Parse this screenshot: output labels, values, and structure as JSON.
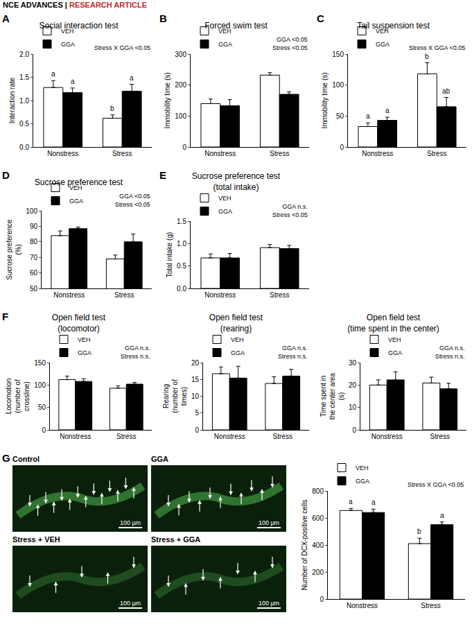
{
  "header": [
    "NCE ADVANCES |",
    "RESEARCH ARTICLE"
  ],
  "chart_data": [
    {
      "letter": "A",
      "type": "bar",
      "title": "Social interaction test",
      "y_label": "Interaction rate",
      "categories": [
        "Nonstress",
        "Stress"
      ],
      "series": [
        {
          "name": "VEH",
          "color": "#ffffff",
          "values": [
            1.28,
            0.62
          ],
          "errors": [
            0.15,
            0.07
          ],
          "letters": [
            "a",
            "b"
          ]
        },
        {
          "name": "GGA",
          "color": "#000000",
          "values": [
            1.17,
            1.2
          ],
          "errors": [
            0.1,
            0.15
          ],
          "letters": [
            "a",
            "a"
          ]
        }
      ],
      "ylim": [
        0,
        2
      ],
      "yticks": [
        {
          "value": 0,
          "label": "0.0"
        },
        0.5,
        {
          "value": 1,
          "label": "1.0"
        },
        1.5,
        {
          "value": 2,
          "label": "2.0"
        }
      ],
      "stats": [
        "Stress X GGA <0.05"
      ],
      "legend": "top left",
      "grid": false
    },
    {
      "letter": "B",
      "type": "bar",
      "title": "Forced swim test",
      "y_label": "Immobility time (s)",
      "categories": [
        "Nonstress",
        "Stress"
      ],
      "series": [
        {
          "name": "VEH",
          "color": "#ffffff",
          "values": [
            140,
            232
          ],
          "errors": [
            15,
            8
          ]
        },
        {
          "name": "GGA",
          "color": "#000000",
          "values": [
            133,
            170
          ],
          "errors": [
            20,
            8
          ]
        }
      ],
      "ylim": [
        0,
        300
      ],
      "yticks": [
        0,
        100,
        200,
        300
      ],
      "stats": [
        "GGA <0.05",
        "Stress <0.05"
      ],
      "legend": "top left",
      "grid": false
    },
    {
      "letter": "C",
      "type": "bar",
      "title": "Tail suspension test",
      "y_label": "Immobility time (s)",
      "categories": [
        "Nonstress",
        "Stress"
      ],
      "series": [
        {
          "name": "VEH",
          "color": "#ffffff",
          "values": [
            33,
            118
          ],
          "errors": [
            6,
            18
          ],
          "letters": [
            "a",
            "b"
          ]
        },
        {
          "name": "GGA",
          "color": "#000000",
          "values": [
            43,
            65
          ],
          "errors": [
            5,
            15
          ],
          "letters": [
            "a",
            "ab"
          ]
        }
      ],
      "ylim": [
        0,
        150
      ],
      "yticks": [
        0,
        50,
        100,
        150
      ],
      "stats": [
        "Stress X GGA <0.05"
      ],
      "legend": "top left",
      "grid": false
    },
    {
      "letter": "D",
      "type": "bar",
      "title": "Sucrose preference test",
      "y_label": "Sucrose preference (%)",
      "categories": [
        "Nonstress",
        "Stress"
      ],
      "series": [
        {
          "name": "VEH",
          "color": "#ffffff",
          "values": [
            84,
            69
          ],
          "errors": [
            3,
            2.5
          ]
        },
        {
          "name": "GGA",
          "color": "#000000",
          "values": [
            88.5,
            80
          ],
          "errors": [
            1,
            5
          ]
        }
      ],
      "ylim": [
        50,
        100
      ],
      "yticks": [
        50,
        60,
        70,
        80,
        90,
        100
      ],
      "stats": [
        "GGA <0.05",
        "Stress <0.05"
      ],
      "legend": "top left",
      "grid": false
    },
    {
      "letter": "E",
      "type": "bar",
      "title": "Sucrose preference test\n(total intake)",
      "y_label": "Total intake (g)",
      "categories": [
        "Nonstress",
        "Stress"
      ],
      "series": [
        {
          "name": "VEH",
          "color": "#ffffff",
          "values": [
            0.68,
            0.91
          ],
          "errors": [
            0.09,
            0.07
          ]
        },
        {
          "name": "GGA",
          "color": "#000000",
          "values": [
            0.68,
            0.89
          ],
          "errors": [
            0.1,
            0.07
          ]
        }
      ],
      "ylim": [
        0,
        1.5
      ],
      "yticks": [
        {
          "value": 0,
          "label": "0.0"
        },
        0.5,
        {
          "value": 1,
          "label": "1.0"
        },
        1.5
      ],
      "stats": [
        "GGA n.s.",
        "Stress <0.05"
      ],
      "legend": "top left",
      "grid": false
    },
    {
      "letter": "F",
      "type": "bar",
      "title": "Open field test\n(locomotor)",
      "y_label": "Locomotion\n(number of crossline)",
      "categories": [
        "Nonstress",
        "Stress"
      ],
      "series": [
        {
          "name": "VEH",
          "color": "#ffffff",
          "values": [
            112,
            93
          ],
          "errors": [
            8,
            5
          ]
        },
        {
          "name": "GGA",
          "color": "#000000",
          "values": [
            108,
            102
          ],
          "errors": [
            6,
            4
          ]
        }
      ],
      "ylim": [
        0,
        150
      ],
      "yticks": [
        0,
        50,
        100,
        150
      ],
      "stats": [
        "GGA n.s.",
        "Stress n.s."
      ],
      "legend": "top left",
      "grid": false
    },
    {
      "type": "bar",
      "title": "Open field test\n(rearing)",
      "y_label": "Rearing\n(number of times)",
      "categories": [
        "Nonstress",
        "Stress"
      ],
      "series": [
        {
          "name": "VEH",
          "color": "#ffffff",
          "values": [
            16.7,
            13.8
          ],
          "errors": [
            2,
            2
          ]
        },
        {
          "name": "GGA",
          "color": "#000000",
          "values": [
            15.4,
            16
          ],
          "errors": [
            3.5,
            2
          ]
        }
      ],
      "ylim": [
        0,
        20
      ],
      "yticks": [
        0,
        5,
        10,
        15,
        20
      ],
      "stats": [
        "GGA n.s.",
        "Stress n.s."
      ],
      "legend": "top left",
      "grid": false
    },
    {
      "type": "bar",
      "title": "Open field test\n(time spent in the center)",
      "y_label": "Time spent in the center area\n(s)",
      "categories": [
        "Nonstress",
        "Stress"
      ],
      "series": [
        {
          "name": "VEH",
          "color": "#ffffff",
          "values": [
            20,
            20.9
          ],
          "errors": [
            2.3,
            2.6
          ]
        },
        {
          "name": "GGA",
          "color": "#000000",
          "values": [
            22.3,
            18.3
          ],
          "errors": [
            3.6,
            2.5
          ]
        }
      ],
      "ylim": [
        0,
        30
      ],
      "yticks": [
        0,
        10,
        20,
        30
      ],
      "stats": [
        "GGA n.s.",
        "Stress n.s."
      ],
      "legend": "top left",
      "grid": false
    },
    {
      "type": "bar",
      "y_label": "Number of DCX-positive cells",
      "categories": [
        "Nonstress",
        "Stress"
      ],
      "series": [
        {
          "name": "VEH",
          "color": "#ffffff",
          "values": [
            655,
            410
          ],
          "errors": [
            15,
            40
          ],
          "letters": [
            "a",
            "b"
          ]
        },
        {
          "name": "GGA",
          "color": "#000000",
          "values": [
            640,
            550
          ],
          "errors": [
            25,
            20
          ],
          "letters": [
            "a",
            "a"
          ]
        }
      ],
      "ylim": [
        0,
        800
      ],
      "yticks": [
        0,
        200,
        400,
        600,
        800
      ],
      "stats": [
        "Stress X GGA <0.05"
      ],
      "legend": "top left",
      "grid": false
    }
  ],
  "images": {
    "letter": "G",
    "panels": [
      {
        "label": "Control",
        "scale_bar": "100 µm"
      },
      {
        "label": "GGA",
        "scale_bar": "100 µm"
      },
      {
        "label": "Stress + VEH",
        "scale_bar": "100 µm"
      },
      {
        "label": "Stress + GGA",
        "scale_bar": "100 µm"
      }
    ]
  }
}
